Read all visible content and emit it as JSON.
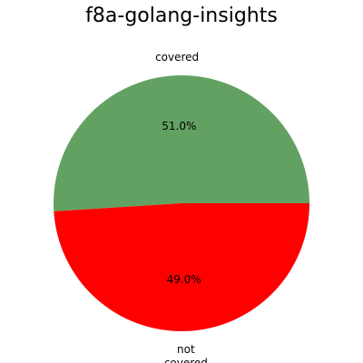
{
  "chart_data": {
    "type": "pie",
    "title": "f8a-golang-insights",
    "slices": [
      {
        "label": "covered",
        "value": 51.0,
        "pct_label": "51.0%",
        "color": "#63a163"
      },
      {
        "label": "not covered",
        "value": 49.0,
        "pct_label": "49.0%",
        "color": "#ff0000"
      }
    ],
    "start_angle_deg": 0,
    "direction": "counterclockwise"
  }
}
